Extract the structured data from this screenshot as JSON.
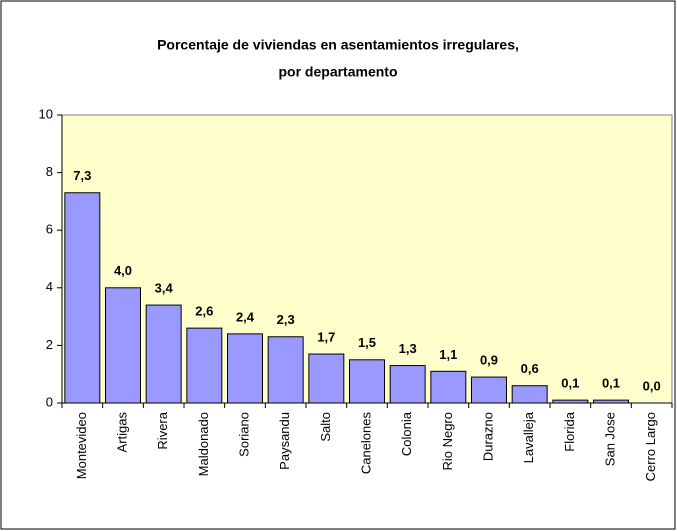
{
  "chart_data": {
    "type": "bar",
    "title": [
      "Porcentaje de viviendas en asentamientos irregulares,",
      "por departamento"
    ],
    "categories": [
      "Montevideo",
      "Artigas",
      "Rivera",
      "Maldonado",
      "Soriano",
      "Paysandu",
      "Salto",
      "Canelones",
      "Colonia",
      "Rio Negro",
      "Durazno",
      "Lavalleja",
      "Florida",
      "San Jose",
      "Cerro Largo"
    ],
    "values": [
      7.3,
      4.0,
      3.4,
      2.6,
      2.4,
      2.3,
      1.7,
      1.5,
      1.3,
      1.1,
      0.9,
      0.6,
      0.1,
      0.1,
      0.0
    ],
    "value_labels": [
      "7,3",
      "4,0",
      "3,4",
      "2,6",
      "2,4",
      "2,3",
      "1,7",
      "1,5",
      "1,3",
      "1,1",
      "0,9",
      "0,6",
      "0,1",
      "0,1",
      "0,0"
    ],
    "color": "#9999ff",
    "plot_background": "#ffffcc",
    "ylim": [
      0,
      10
    ],
    "yticks": [
      0,
      2,
      4,
      6,
      8,
      10
    ],
    "grid": false
  }
}
